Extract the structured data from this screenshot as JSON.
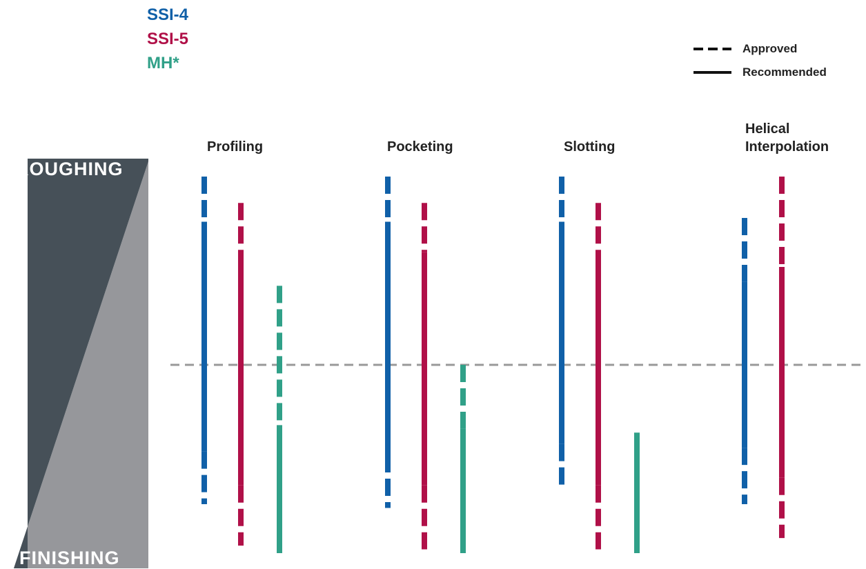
{
  "series_legend": [
    {
      "label": "SSI-4",
      "color": "#1060a8"
    },
    {
      "label": "SSI-5",
      "color": "#b01048"
    },
    {
      "label": "MH*",
      "color": "#30a088"
    }
  ],
  "style_legend": [
    {
      "label": "Approved",
      "style": "dashed"
    },
    {
      "label": "Recommended",
      "style": "solid"
    }
  ],
  "scale": {
    "top_label": "ROUGHING",
    "bottom_label": "FINISHING"
  },
  "categories": [
    {
      "label": "Profiling"
    },
    {
      "label": "Pocketing"
    },
    {
      "label": "Slotting"
    },
    {
      "label": "Helical Interpolation"
    }
  ],
  "colors": {
    "SSI-4": "#1060a8",
    "SSI-5": "#b01048",
    "MH*": "#30a088",
    "dark": "#465058",
    "light": "#96979b",
    "midline": "#999999"
  },
  "chart_data": {
    "type": "range-bars",
    "y_axis": "roughing (0) to finishing (100)",
    "midline": 50,
    "bars": [
      {
        "category": "Profiling",
        "series": "SSI-4",
        "segments": [
          {
            "from": 0,
            "to": 12,
            "style": "dashed"
          },
          {
            "from": 12,
            "to": 73,
            "style": "solid"
          },
          {
            "from": 73,
            "to": 87,
            "style": "dashed"
          }
        ]
      },
      {
        "category": "Profiling",
        "series": "SSI-5",
        "segments": [
          {
            "from": 7,
            "to": 24,
            "style": "dashed"
          },
          {
            "from": 24,
            "to": 82,
            "style": "solid"
          },
          {
            "from": 82,
            "to": 98,
            "style": "dashed"
          }
        ]
      },
      {
        "category": "Profiling",
        "series": "MH*",
        "segments": [
          {
            "from": 29,
            "to": 66,
            "style": "dashed"
          },
          {
            "from": 66,
            "to": 100,
            "style": "solid"
          }
        ]
      },
      {
        "category": "Pocketing",
        "series": "SSI-4",
        "segments": [
          {
            "from": 0,
            "to": 12,
            "style": "dashed"
          },
          {
            "from": 12,
            "to": 74,
            "style": "solid"
          },
          {
            "from": 74,
            "to": 88,
            "style": "dashed"
          }
        ]
      },
      {
        "category": "Pocketing",
        "series": "SSI-5",
        "segments": [
          {
            "from": 7,
            "to": 20,
            "style": "dashed"
          },
          {
            "from": 20,
            "to": 82,
            "style": "solid"
          },
          {
            "from": 82,
            "to": 99,
            "style": "dashed"
          }
        ]
      },
      {
        "category": "Pocketing",
        "series": "MH*",
        "segments": [
          {
            "from": 50,
            "to": 67,
            "style": "dashed"
          },
          {
            "from": 67,
            "to": 100,
            "style": "solid"
          }
        ]
      },
      {
        "category": "Slotting",
        "series": "SSI-4",
        "segments": [
          {
            "from": 0,
            "to": 12,
            "style": "dashed"
          },
          {
            "from": 12,
            "to": 71,
            "style": "solid"
          },
          {
            "from": 71,
            "to": 82,
            "style": "dashed"
          }
        ]
      },
      {
        "category": "Slotting",
        "series": "SSI-5",
        "segments": [
          {
            "from": 7,
            "to": 24,
            "style": "dashed"
          },
          {
            "from": 24,
            "to": 82,
            "style": "solid"
          },
          {
            "from": 82,
            "to": 99,
            "style": "dashed"
          }
        ]
      },
      {
        "category": "Slotting",
        "series": "MH*",
        "segments": [
          {
            "from": 68,
            "to": 100,
            "style": "solid"
          }
        ]
      },
      {
        "category": "Helical Interpolation",
        "series": "SSI-4",
        "segments": [
          {
            "from": 11,
            "to": 28,
            "style": "dashed"
          },
          {
            "from": 28,
            "to": 72,
            "style": "solid"
          },
          {
            "from": 72,
            "to": 87,
            "style": "dashed"
          }
        ]
      },
      {
        "category": "Helical Interpolation",
        "series": "SSI-5",
        "segments": [
          {
            "from": 0,
            "to": 24,
            "style": "dashed"
          },
          {
            "from": 24,
            "to": 80,
            "style": "solid"
          },
          {
            "from": 80,
            "to": 96,
            "style": "dashed"
          }
        ]
      }
    ]
  }
}
